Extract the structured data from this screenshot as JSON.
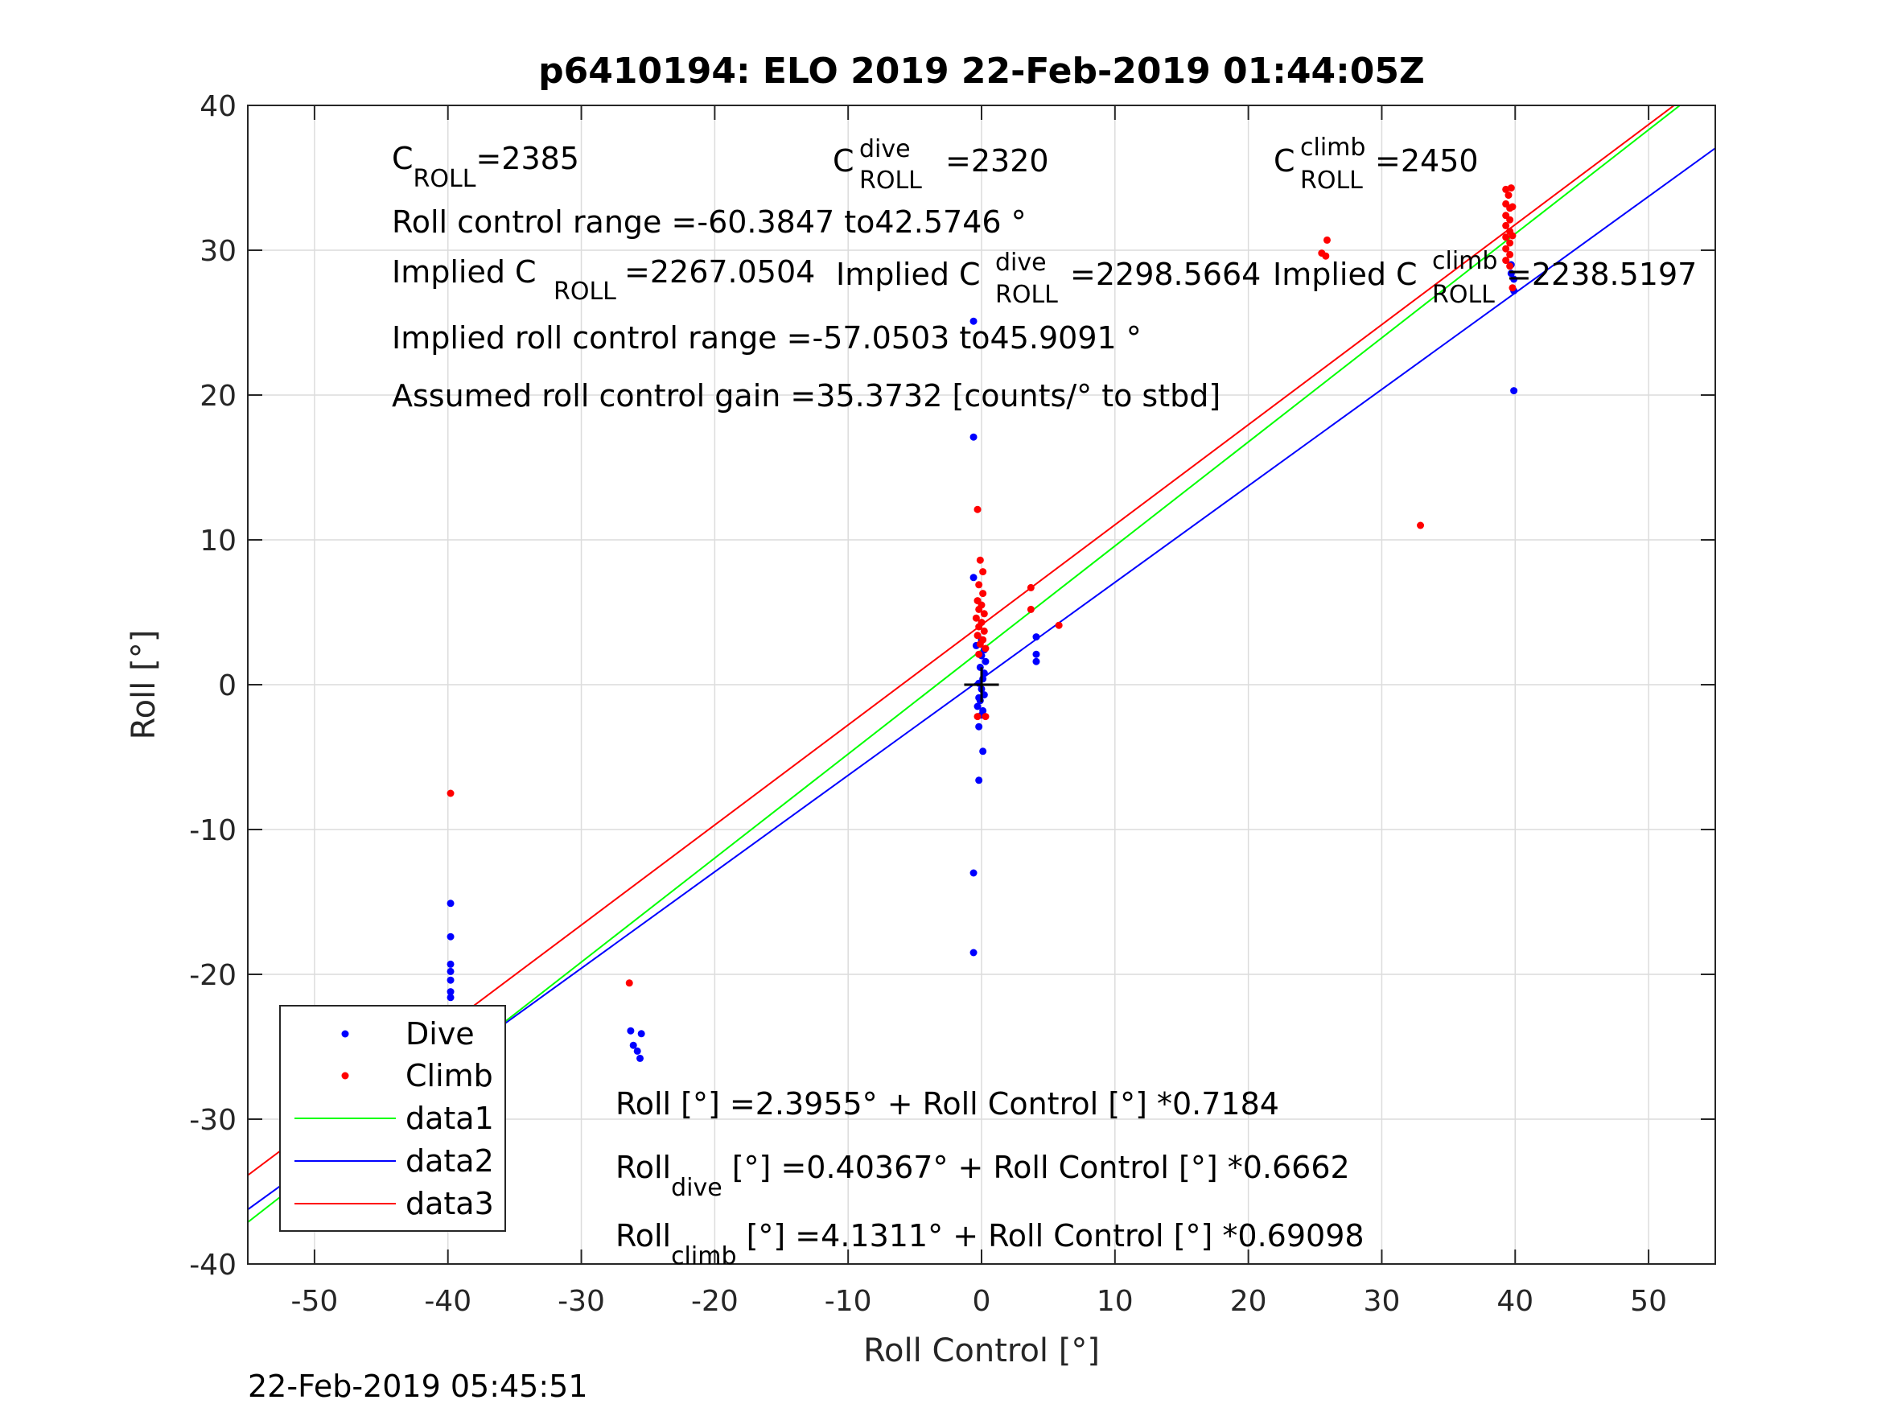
{
  "chart_data": {
    "type": "scatter",
    "title": "p6410194: ELO 2019 22-Feb-2019 01:44:05Z",
    "xlabel": "Roll Control [°]",
    "ylabel": "Roll [°]",
    "xlim": [
      -55,
      55
    ],
    "ylim": [
      -40,
      40
    ],
    "xticks": [
      -50,
      -40,
      -30,
      -20,
      -10,
      0,
      10,
      20,
      30,
      40,
      50
    ],
    "yticks": [
      -40,
      -30,
      -20,
      -10,
      0,
      10,
      20,
      30,
      40
    ],
    "grid": true,
    "legend_position": "bottom-left",
    "timestamp": "22-Feb-2019 05:45:51",
    "annotations": {
      "c_roll": {
        "base": "C",
        "sub": "ROLL",
        "value": "=2385"
      },
      "c_roll_dive": {
        "base": "C",
        "sup": "dive",
        "sub": "ROLL",
        "value": " =2320"
      },
      "c_roll_climb": {
        "base": "C",
        "sup": "climb",
        "sub": "ROLL",
        "value": " =2450"
      },
      "roll_control_range": "Roll control range =-60.3847 to42.5746 °",
      "implied_c_roll": {
        "prefix": "Implied C",
        "sub": "ROLL",
        "value": " =2267.0504"
      },
      "implied_c_roll_dive": {
        "prefix": "Implied C",
        "sup": "dive",
        "sub": "ROLL",
        "value": " =2298.5664"
      },
      "implied_c_roll_climb": {
        "prefix": "Implied C",
        "sup": "climb",
        "sub": "ROLL",
        "value": " =2238.5197"
      },
      "implied_range": "Implied roll control range =-57.0503 to45.9091 °",
      "gain": "Assumed roll control gain =35.3732 [counts/° to stbd]",
      "fit_all": "Roll [°] =2.3955° + Roll Control [°] *0.7184",
      "fit_dive": {
        "base": "Roll",
        "sub": "dive",
        "rest": " [°] =0.40367° + Roll Control [°] *0.6662"
      },
      "fit_climb": {
        "base": "Roll",
        "sub": "climb",
        "rest": " [°] =4.1311° + Roll Control [°] *0.69098"
      }
    },
    "series": [
      {
        "name": "Dive",
        "kind": "points",
        "color": "#0000ff",
        "points": [
          [
            -39.8,
            -15.1
          ],
          [
            -39.8,
            -17.4
          ],
          [
            -39.8,
            -19.3
          ],
          [
            -39.8,
            -19.8
          ],
          [
            -39.8,
            -20.4
          ],
          [
            -39.8,
            -21.2
          ],
          [
            -39.8,
            -21.6
          ],
          [
            -39.8,
            -25.5
          ],
          [
            -39.8,
            -26.0
          ],
          [
            -39.8,
            -26.5
          ],
          [
            -39.8,
            -27.0
          ],
          [
            -39.8,
            -27.5
          ],
          [
            -39.8,
            -28.0
          ],
          [
            -39.8,
            -28.5
          ],
          [
            -39.8,
            -29.0
          ],
          [
            -39.8,
            -29.6
          ],
          [
            -39.8,
            -30.2
          ],
          [
            -39.5,
            -25.8
          ],
          [
            -39.5,
            -26.3
          ],
          [
            -39.5,
            -26.8
          ],
          [
            -39.5,
            -27.4
          ],
          [
            -39.5,
            -28.2
          ],
          [
            -39.5,
            -29.1
          ],
          [
            -26.3,
            -23.9
          ],
          [
            -26.1,
            -24.9
          ],
          [
            -25.8,
            -25.3
          ],
          [
            -25.6,
            -25.8
          ],
          [
            -25.5,
            -24.1
          ],
          [
            -0.6,
            25.1
          ],
          [
            -0.6,
            17.1
          ],
          [
            -0.6,
            7.4
          ],
          [
            -0.4,
            2.7
          ],
          [
            -0.6,
            -13.0
          ],
          [
            -0.6,
            -18.5
          ],
          [
            -0.2,
            -6.6
          ],
          [
            0.1,
            -4.6
          ],
          [
            -0.2,
            -2.9
          ],
          [
            0.0,
            -2.1
          ],
          [
            -0.3,
            -1.5
          ],
          [
            -0.1,
            -1.1
          ],
          [
            0.2,
            -0.7
          ],
          [
            0.0,
            -0.3
          ],
          [
            -0.2,
            0.1
          ],
          [
            0.1,
            0.4
          ],
          [
            0.2,
            0.8
          ],
          [
            -0.1,
            1.2
          ],
          [
            0.3,
            1.6
          ],
          [
            0.0,
            2.0
          ],
          [
            0.2,
            2.4
          ],
          [
            -0.2,
            -0.9
          ],
          [
            0.1,
            -1.8
          ],
          [
            0.0,
            3.1
          ],
          [
            4.1,
            3.3
          ],
          [
            4.1,
            2.1
          ],
          [
            4.1,
            1.6
          ],
          [
            39.9,
            28.0
          ],
          [
            39.9,
            27.2
          ],
          [
            39.9,
            20.3
          ],
          [
            39.7,
            29.0
          ],
          [
            39.7,
            28.4
          ]
        ]
      },
      {
        "name": "Climb",
        "kind": "points",
        "color": "#ff0000",
        "points": [
          [
            -39.8,
            -7.5
          ],
          [
            -39.9,
            -22.6
          ],
          [
            -39.9,
            -23.0
          ],
          [
            -39.9,
            -23.4
          ],
          [
            -39.9,
            -23.8
          ],
          [
            -39.9,
            -24.2
          ],
          [
            -39.9,
            -24.6
          ],
          [
            -39.9,
            -25.0
          ],
          [
            -39.9,
            -25.4
          ],
          [
            -39.9,
            -25.8
          ],
          [
            -39.7,
            -23.2
          ],
          [
            -39.7,
            -24.0
          ],
          [
            -39.7,
            -24.8
          ],
          [
            -26.4,
            -20.6
          ],
          [
            -0.3,
            12.1
          ],
          [
            -0.1,
            8.6
          ],
          [
            0.1,
            7.8
          ],
          [
            -0.2,
            6.9
          ],
          [
            0.1,
            6.3
          ],
          [
            -0.3,
            5.8
          ],
          [
            0.0,
            5.5
          ],
          [
            -0.2,
            5.2
          ],
          [
            0.2,
            4.9
          ],
          [
            -0.4,
            4.6
          ],
          [
            0.0,
            4.3
          ],
          [
            -0.2,
            4.0
          ],
          [
            0.2,
            3.7
          ],
          [
            -0.3,
            3.4
          ],
          [
            0.1,
            3.1
          ],
          [
            -0.1,
            2.8
          ],
          [
            0.3,
            2.5
          ],
          [
            -0.2,
            2.1
          ],
          [
            0.3,
            -2.2
          ],
          [
            -0.3,
            -2.2
          ],
          [
            3.7,
            6.7
          ],
          [
            3.7,
            5.2
          ],
          [
            5.8,
            4.1
          ],
          [
            25.9,
            30.7
          ],
          [
            25.5,
            29.8
          ],
          [
            25.8,
            29.6
          ],
          [
            32.9,
            11.0
          ],
          [
            39.3,
            34.2
          ],
          [
            39.5,
            33.8
          ],
          [
            39.7,
            34.3
          ],
          [
            39.3,
            33.2
          ],
          [
            39.6,
            32.9
          ],
          [
            39.3,
            32.4
          ],
          [
            39.6,
            32.1
          ],
          [
            39.3,
            31.7
          ],
          [
            39.6,
            31.3
          ],
          [
            39.3,
            30.9
          ],
          [
            39.6,
            30.5
          ],
          [
            39.3,
            30.1
          ],
          [
            39.6,
            29.7
          ],
          [
            39.3,
            29.3
          ],
          [
            39.6,
            28.9
          ],
          [
            39.8,
            27.4
          ],
          [
            39.8,
            33.0
          ],
          [
            39.8,
            31.0
          ]
        ]
      },
      {
        "name": "data1",
        "kind": "line",
        "color": "#00ff00",
        "intercept": 2.3955,
        "slope": 0.7184
      },
      {
        "name": "data2",
        "kind": "line",
        "color": "#0000ff",
        "intercept": 0.40367,
        "slope": 0.6662
      },
      {
        "name": "data3",
        "kind": "line",
        "color": "#ff0000",
        "intercept": 4.1311,
        "slope": 0.69098
      }
    ]
  }
}
